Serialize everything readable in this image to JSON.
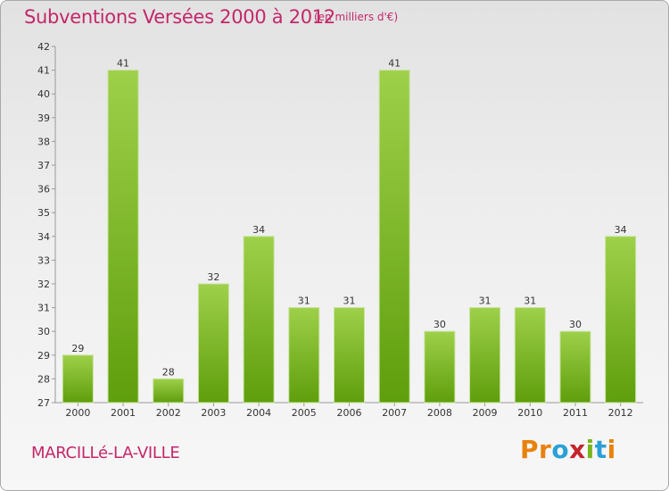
{
  "header": {
    "title": "Subventions Versées 2000 à 2012",
    "unit": "(en milliers d'€)"
  },
  "footer": {
    "commune": "MARCILLé-LA-VILLE",
    "logo_letters": [
      "P",
      "r",
      "o",
      "x",
      "i",
      "t",
      "i"
    ],
    "logo_colors": [
      "#e8820c",
      "#e8820c",
      "#2aa0d8",
      "#c2262c",
      "#7ab51d",
      "#2aa0d8",
      "#e8820c"
    ]
  },
  "colors": {
    "text": "#c4266a",
    "bar_top": "#9ed04a",
    "bar_bottom": "#5f9e0c",
    "axis": "#999999"
  },
  "chart_data": {
    "type": "bar",
    "categories": [
      "2000",
      "2001",
      "2002",
      "2003",
      "2004",
      "2005",
      "2006",
      "2007",
      "2008",
      "2009",
      "2010",
      "2011",
      "2012"
    ],
    "values": [
      29,
      41,
      28,
      32,
      34,
      31,
      31,
      41,
      30,
      31,
      31,
      30,
      34
    ],
    "ylim": [
      27,
      42
    ],
    "yticks": [
      27,
      28,
      29,
      30,
      31,
      32,
      33,
      34,
      35,
      36,
      37,
      38,
      39,
      40,
      41,
      42
    ],
    "grid": false,
    "legend": "none"
  }
}
